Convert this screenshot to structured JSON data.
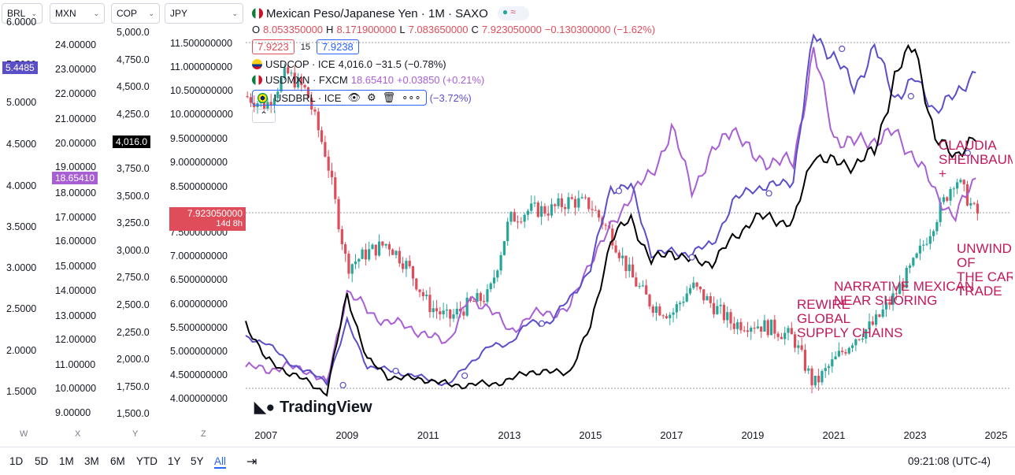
{
  "axis_selectors": [
    {
      "label": "BRL",
      "ticks": [
        "6.0000",
        "5.5000",
        "5.0000",
        "4.5000",
        "4.0000",
        "3.5000",
        "3.0000",
        "2.5000",
        "2.0000",
        "1.5000"
      ],
      "ticks_y": [
        29,
        83,
        131,
        184,
        237,
        289,
        341,
        393,
        446,
        498
      ],
      "tag": "5.4485",
      "tag_color": "#5b4fc9"
    },
    {
      "label": "MXN",
      "ticks": [
        "24.00000",
        "23.00000",
        "22.00000",
        "21.00000",
        "20.00000",
        "19.00000",
        "18.00000",
        "17.00000",
        "16.00000",
        "15.00000",
        "14.00000",
        "13.00000",
        "12.00000",
        "11.00000",
        "10.00000",
        "9.00000"
      ],
      "ticks_y": [
        58,
        89,
        120,
        152,
        183,
        213,
        246,
        277,
        307,
        339,
        370,
        402,
        432,
        464,
        494,
        525
      ],
      "tag": "18.65410",
      "tag_color": "#a95fd4"
    },
    {
      "label": "COP",
      "ticks": [
        "5,000.0",
        "4,750.0",
        "4,500.0",
        "4,250.0",
        "4,000.0",
        "3,750.0",
        "3,500.0",
        "3,250.0",
        "3,000.0",
        "2,750.0",
        "2,500.0",
        "2,250.0",
        "2,000.0",
        "1,750.0",
        "1,500.0"
      ],
      "ticks_y": [
        42,
        77,
        111,
        146,
        180,
        215,
        250,
        284,
        319,
        353,
        388,
        423,
        457,
        492,
        526
      ],
      "tag": "4,016.0",
      "tag_color": "#000000"
    },
    {
      "label": "JPY",
      "ticks": [
        "11.500000000",
        "11.000000000",
        "10.500000000",
        "10.000000000",
        "9.500000000",
        "9.000000000",
        "8.500000000",
        "8.000000000",
        "7.500000000",
        "7.000000000",
        "6.500000000",
        "6.000000000",
        "5.500000000",
        "5.000000000",
        "4.500000000",
        "4.000000000"
      ],
      "ticks_y": [
        56,
        86,
        116,
        146,
        177,
        207,
        238,
        270,
        296,
        326,
        356,
        387,
        417,
        447,
        477,
        507
      ],
      "tag": "7.923050000",
      "tag_sub": "14d 8h",
      "tag_color": "#e04d5a"
    }
  ],
  "axis_letters": [
    "W",
    "X",
    "Y",
    "Z"
  ],
  "legend": {
    "main_title": "Mexican Peso/Japanese Yen · 1M · SAXO",
    "ohlc": {
      "o_label": "O",
      "o": "8.053350000",
      "h_label": "H",
      "h": "8.171900000",
      "l_label": "L",
      "l": "7.083650000",
      "c_label": "C",
      "c": "7.923050000",
      "chg": "−0.130300000 (−1.62%)"
    },
    "sell": "7.9223",
    "spread": "15",
    "buy": "7.9238",
    "cop": {
      "name": "USDCOP · ICE",
      "val": "4,016.0",
      "chg": "−31.5 (−0.78%)"
    },
    "mxn": {
      "name": "USDMXN · FXCM",
      "val": "18.65410",
      "chg": "+0.03850 (+0.21%)"
    },
    "brl": {
      "name": "USDBRL · ICE",
      "chg": "(−3.72%)"
    },
    "more": "∘∘∘",
    "collapse": "⌃"
  },
  "watermark": "TradingView",
  "annotations": [
    {
      "text": [
        "REWIRE",
        "GLOBAL",
        "SUPPLY CHAINS"
      ]
    },
    {
      "text": [
        "NARRATIVE MEXICAN",
        "NEAR SHORING"
      ]
    },
    {
      "text": [
        "CLAUDIA",
        "SHEINBAUM",
        "+"
      ]
    },
    {
      "text": [
        "UNWIND",
        "OF",
        "THE CARRY",
        "TRADE"
      ]
    }
  ],
  "x_ticks": [
    "2007",
    "2009",
    "2011",
    "2013",
    "2015",
    "2017",
    "2019",
    "2021",
    "2023",
    "2025"
  ],
  "timeframes": [
    "1D",
    "5D",
    "1M",
    "3M",
    "6M",
    "YTD",
    "1Y",
    "5Y",
    "All"
  ],
  "active_timeframe": "All",
  "clock": "09:21:08 (UTC-4)",
  "colors": {
    "up": "#26a69a",
    "down": "#e04d5a",
    "mxn": "#a95fd4",
    "brl": "#5b4fc9",
    "cop": "#000000",
    "annot": "#c2185b"
  },
  "chart_data": {
    "type": "line",
    "x": [
      2006.5,
      2007,
      2007.5,
      2008,
      2008.5,
      2009,
      2009.5,
      2010,
      2010.5,
      2011,
      2011.5,
      2012,
      2012.5,
      2013,
      2013.5,
      2014,
      2014.5,
      2015,
      2015.5,
      2016,
      2016.5,
      2017,
      2017.5,
      2018,
      2018.5,
      2019,
      2019.5,
      2020,
      2020.5,
      2021,
      2021.5,
      2022,
      2022.5,
      2023,
      2023.5,
      2024,
      2024.5
    ],
    "series": [
      {
        "name": "USDMXN · FXCM",
        "values": [
          10.9,
          10.8,
          10.9,
          10.8,
          10.2,
          14.0,
          13.2,
          12.7,
          12.6,
          12.1,
          12.0,
          13.6,
          13.4,
          12.3,
          13.0,
          13.1,
          13.3,
          15.3,
          16.5,
          18.0,
          18.7,
          20.6,
          18.2,
          19.5,
          20.8,
          19.4,
          19.3,
          19.2,
          23.8,
          20.3,
          20.0,
          20.2,
          20.4,
          19.5,
          18.0,
          17.0,
          18.65
        ]
      },
      {
        "name": "USDBRL · ICE",
        "values": [
          2.15,
          2.12,
          1.88,
          1.76,
          1.62,
          2.35,
          1.82,
          1.77,
          1.72,
          1.66,
          1.59,
          1.85,
          2.05,
          2.1,
          2.35,
          2.35,
          2.65,
          3.0,
          4.0,
          4.0,
          3.2,
          3.2,
          3.2,
          3.3,
          3.8,
          4.0,
          4.0,
          4.1,
          5.85,
          5.6,
          5.2,
          5.7,
          5.1,
          5.3,
          4.95,
          5.1,
          5.45
        ]
      },
      {
        "name": "USDCOP · ICE",
        "values": [
          2350,
          2000,
          1900,
          1800,
          1700,
          2600,
          2000,
          1850,
          1830,
          1820,
          1770,
          1770,
          1780,
          1810,
          1900,
          1880,
          1900,
          2300,
          3100,
          3300,
          2900,
          3000,
          2900,
          2900,
          3100,
          3300,
          3300,
          3250,
          3900,
          3800,
          3800,
          3900,
          4600,
          4900,
          4000,
          3900,
          4016
        ]
      },
      {
        "name": "Mexican Peso/Japanese Yen",
        "values": [
          10.4,
          10.2,
          10.9,
          10.5,
          9.1,
          6.8,
          7.1,
          7.3,
          6.8,
          6.0,
          5.7,
          6.0,
          6.2,
          7.8,
          8.0,
          8.0,
          8.2,
          8.1,
          7.5,
          6.6,
          6.0,
          5.8,
          6.4,
          6.0,
          5.6,
          5.6,
          5.5,
          5.3,
          4.3,
          4.8,
          5.3,
          5.6,
          6.2,
          6.9,
          7.8,
          8.7,
          7.92
        ]
      }
    ],
    "ylabel": "",
    "ylim_jpy": [
      4.0,
      11.5
    ]
  }
}
